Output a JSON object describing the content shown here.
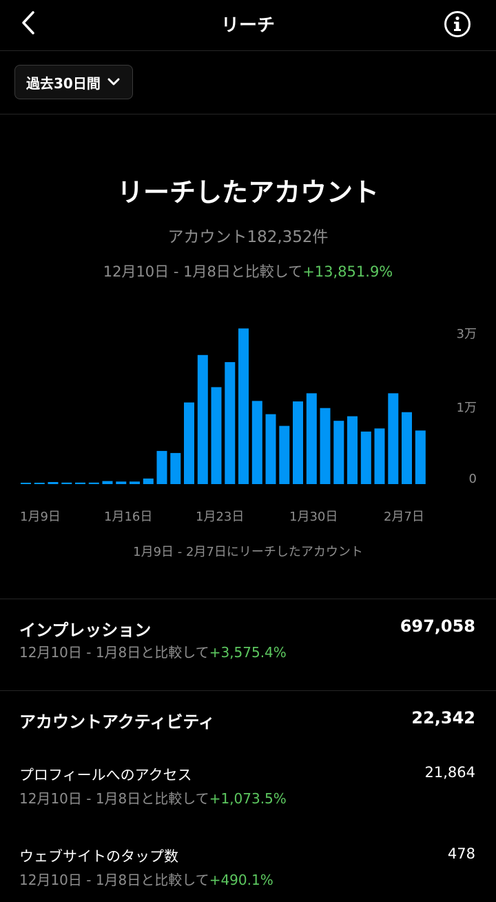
{
  "header": {
    "title": "リーチ"
  },
  "filter": {
    "range_label": "過去30日間"
  },
  "reach": {
    "title": "リーチしたアカウント",
    "subtitle": "アカウント182,352件",
    "compare_prefix": "12月10日 -  1月8日と比較して",
    "compare_change": "+13,851.9%"
  },
  "chart_data": {
    "type": "bar",
    "x_tick_labels": [
      "1月9日",
      "1月16日",
      "1月23日",
      "1月30日",
      "2月7日"
    ],
    "y_tick_labels": [
      "3万",
      "1万",
      "0"
    ],
    "y_axis_position": "right",
    "grid": false,
    "caption": "1月9日 -  2月7日にリーチしたアカウント",
    "color": "#0095f6",
    "categories": [
      "1/9",
      "1/10",
      "1/11",
      "1/12",
      "1/13",
      "1/14",
      "1/15",
      "1/16",
      "1/17",
      "1/18",
      "1/19",
      "1/20",
      "1/21",
      "1/22",
      "1/23",
      "1/24",
      "1/25",
      "1/26",
      "1/27",
      "1/28",
      "1/29",
      "1/30",
      "1/31",
      "2/1",
      "2/2",
      "2/3",
      "2/4",
      "2/5",
      "2/6",
      "2/7"
    ],
    "values": [
      200,
      250,
      400,
      300,
      300,
      300,
      600,
      500,
      500,
      1100,
      6500,
      6100,
      16000,
      25300,
      19000,
      23900,
      30500,
      16300,
      13700,
      11400,
      16200,
      17800,
      14900,
      12400,
      13300,
      10300,
      10900,
      17800,
      14100,
      10500
    ]
  },
  "impressions": {
    "title": "インプレッション",
    "value": "697,058",
    "compare_prefix": "12月10日 -  1月8日と比較して",
    "compare_change": "+3,575.4%"
  },
  "activity": {
    "title": "アカウントアクティビティ",
    "value": "22,342",
    "items": [
      {
        "label": "プロフィールへのアクセス",
        "value": "21,864",
        "compare_prefix": "12月10日 -  1月8日と比較して",
        "compare_change": "+1,073.5%"
      },
      {
        "label": "ウェブサイトのタップ数",
        "value": "478",
        "compare_prefix": "12月10日 -  1月8日と比較して",
        "compare_change": "+490.1%"
      }
    ]
  }
}
